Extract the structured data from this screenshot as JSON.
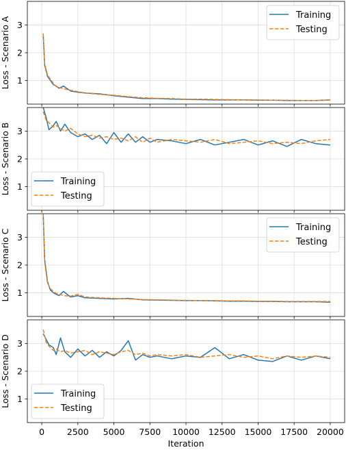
{
  "chart_data": [
    {
      "type": "line",
      "ylabel": "Loss - Scenario A",
      "xlabel": "",
      "xlim": [
        -1000,
        21000
      ],
      "ylim": [
        0.15,
        3.85
      ],
      "xticks": [
        0,
        2500,
        5000,
        7500,
        10000,
        12500,
        15000,
        17500,
        20000
      ],
      "yticks": [
        1,
        2,
        3
      ],
      "grid": true,
      "legend_position": "upper right",
      "series": [
        {
          "name": "Training",
          "color": "#1f77b4",
          "dash": "solid",
          "x": [
            100,
            200,
            400,
            600,
            800,
            1000,
            1200,
            1500,
            2000,
            2500,
            3000,
            4000,
            5000,
            6000,
            7000,
            8000,
            9000,
            10000,
            11000,
            12000,
            13000,
            14000,
            15000,
            16000,
            17000,
            18000,
            19000,
            20000
          ],
          "y": [
            2.65,
            1.55,
            1.15,
            1.0,
            0.85,
            0.8,
            0.72,
            0.8,
            0.62,
            0.58,
            0.55,
            0.52,
            0.45,
            0.4,
            0.35,
            0.35,
            0.33,
            0.32,
            0.31,
            0.3,
            0.3,
            0.3,
            0.29,
            0.29,
            0.28,
            0.28,
            0.28,
            0.3
          ]
        },
        {
          "name": "Testing",
          "color": "#ff7f0e",
          "dash": "dashed",
          "x": [
            100,
            200,
            400,
            600,
            800,
            1000,
            1200,
            1500,
            2000,
            2500,
            3000,
            4000,
            5000,
            6000,
            7000,
            8000,
            9000,
            10000,
            11000,
            12000,
            13000,
            14000,
            15000,
            16000,
            17000,
            18000,
            19000,
            20000
          ],
          "y": [
            2.7,
            1.6,
            1.2,
            1.05,
            0.9,
            0.78,
            0.75,
            0.7,
            0.65,
            0.6,
            0.55,
            0.5,
            0.47,
            0.42,
            0.38,
            0.36,
            0.35,
            0.33,
            0.33,
            0.32,
            0.31,
            0.3,
            0.3,
            0.29,
            0.29,
            0.28,
            0.28,
            0.29
          ]
        }
      ]
    },
    {
      "type": "line",
      "ylabel": "Loss - Scenario B",
      "xlabel": "",
      "xlim": [
        -1000,
        21000
      ],
      "ylim": [
        0.15,
        3.85
      ],
      "xticks": [
        0,
        2500,
        5000,
        7500,
        10000,
        12500,
        15000,
        17500,
        20000
      ],
      "yticks": [
        1,
        2,
        3
      ],
      "grid": true,
      "legend_position": "lower left",
      "series": [
        {
          "name": "Training",
          "color": "#1f77b4",
          "dash": "solid",
          "x": [
            100,
            300,
            500,
            800,
            1000,
            1300,
            1600,
            2000,
            2500,
            3000,
            3500,
            4000,
            4500,
            5000,
            5500,
            6000,
            6500,
            7000,
            7500,
            8000,
            9000,
            10000,
            11000,
            12000,
            13000,
            14000,
            15000,
            16000,
            17000,
            18000,
            19000,
            20000
          ],
          "y": [
            3.85,
            3.5,
            3.05,
            3.2,
            3.35,
            3.0,
            3.25,
            2.95,
            2.8,
            2.9,
            2.7,
            2.85,
            2.55,
            2.95,
            2.6,
            2.9,
            2.6,
            2.8,
            2.6,
            2.7,
            2.65,
            2.55,
            2.7,
            2.5,
            2.6,
            2.7,
            2.5,
            2.65,
            2.45,
            2.7,
            2.55,
            2.5
          ]
        },
        {
          "name": "Testing",
          "color": "#ff7f0e",
          "dash": "dashed",
          "x": [
            100,
            300,
            500,
            800,
            1000,
            1300,
            1600,
            2000,
            2500,
            3000,
            3500,
            4000,
            4500,
            5000,
            5500,
            6000,
            6500,
            7000,
            7500,
            8000,
            9000,
            10000,
            11000,
            12000,
            13000,
            14000,
            15000,
            16000,
            17000,
            18000,
            19000,
            20000
          ],
          "y": [
            3.7,
            3.4,
            3.3,
            3.15,
            3.2,
            3.1,
            3.0,
            3.1,
            2.9,
            2.8,
            2.85,
            2.75,
            2.8,
            2.7,
            2.75,
            2.65,
            2.8,
            2.6,
            2.75,
            2.6,
            2.7,
            2.65,
            2.6,
            2.7,
            2.55,
            2.6,
            2.65,
            2.55,
            2.6,
            2.55,
            2.65,
            2.7
          ]
        }
      ]
    },
    {
      "type": "line",
      "ylabel": "Loss - Scenario C",
      "xlabel": "",
      "xlim": [
        -1000,
        21000
      ],
      "ylim": [
        0.15,
        3.85
      ],
      "xticks": [
        0,
        2500,
        5000,
        7500,
        10000,
        12500,
        15000,
        17500,
        20000
      ],
      "yticks": [
        1,
        2,
        3
      ],
      "grid": true,
      "legend_position": "upper right",
      "series": [
        {
          "name": "Training",
          "color": "#1f77b4",
          "dash": "solid",
          "x": [
            100,
            200,
            400,
            600,
            800,
            1000,
            1200,
            1500,
            2000,
            2500,
            3000,
            4000,
            5000,
            6000,
            7000,
            8000,
            9000,
            10000,
            11000,
            12000,
            13000,
            14000,
            15000,
            16000,
            17000,
            18000,
            19000,
            20000
          ],
          "y": [
            3.85,
            2.2,
            1.4,
            1.1,
            1.0,
            0.95,
            0.9,
            1.05,
            0.85,
            0.9,
            0.82,
            0.8,
            0.78,
            0.8,
            0.75,
            0.74,
            0.73,
            0.72,
            0.72,
            0.71,
            0.7,
            0.7,
            0.69,
            0.69,
            0.68,
            0.68,
            0.68,
            0.66
          ]
        },
        {
          "name": "Testing",
          "color": "#ff7f0e",
          "dash": "dashed",
          "x": [
            100,
            200,
            400,
            600,
            800,
            1000,
            1200,
            1500,
            2000,
            2500,
            3000,
            4000,
            5000,
            6000,
            7000,
            8000,
            9000,
            10000,
            11000,
            12000,
            13000,
            14000,
            15000,
            16000,
            17000,
            18000,
            19000,
            20000
          ],
          "y": [
            3.85,
            2.1,
            1.35,
            1.15,
            1.05,
            0.98,
            0.95,
            0.9,
            0.88,
            0.95,
            0.85,
            0.82,
            0.8,
            0.78,
            0.76,
            0.75,
            0.74,
            0.73,
            0.72,
            0.72,
            0.71,
            0.71,
            0.7,
            0.7,
            0.69,
            0.69,
            0.69,
            0.69
          ]
        }
      ]
    },
    {
      "type": "line",
      "ylabel": "Loss - Scenario D",
      "xlabel": "Iteration",
      "xlim": [
        -1000,
        21000
      ],
      "ylim": [
        0.15,
        3.85
      ],
      "xticks": [
        0,
        2500,
        5000,
        7500,
        10000,
        12500,
        15000,
        17500,
        20000
      ],
      "xticklabels": [
        "0",
        "2500",
        "5000",
        "7500",
        "10000",
        "12500",
        "15000",
        "17500",
        "20000"
      ],
      "yticks": [
        1,
        2,
        3
      ],
      "grid": true,
      "legend_position": "lower left",
      "series": [
        {
          "name": "Training",
          "color": "#1f77b4",
          "dash": "solid",
          "x": [
            100,
            300,
            500,
            800,
            1000,
            1300,
            1600,
            2000,
            2500,
            3000,
            3500,
            4000,
            4500,
            5000,
            5500,
            6000,
            6500,
            7000,
            7500,
            8000,
            9000,
            10000,
            11000,
            12000,
            13000,
            14000,
            15000,
            16000,
            17000,
            18000,
            19000,
            20000
          ],
          "y": [
            3.35,
            3.15,
            2.95,
            2.85,
            2.6,
            3.2,
            2.7,
            2.5,
            2.8,
            2.55,
            2.75,
            2.5,
            2.7,
            2.55,
            2.75,
            3.1,
            2.4,
            2.6,
            2.5,
            2.55,
            2.45,
            2.55,
            2.5,
            2.85,
            2.45,
            2.6,
            2.4,
            2.35,
            2.55,
            2.4,
            2.55,
            2.45
          ]
        },
        {
          "name": "Testing",
          "color": "#ff7f0e",
          "dash": "dashed",
          "x": [
            100,
            300,
            500,
            800,
            1000,
            1300,
            1600,
            2000,
            2500,
            3000,
            3500,
            4000,
            4500,
            5000,
            5500,
            6000,
            6500,
            7000,
            7500,
            8000,
            9000,
            10000,
            11000,
            12000,
            13000,
            14000,
            15000,
            16000,
            17000,
            18000,
            19000,
            20000
          ],
          "y": [
            3.5,
            3.05,
            2.9,
            2.75,
            2.8,
            2.7,
            2.75,
            2.65,
            2.7,
            2.75,
            2.6,
            2.7,
            2.65,
            2.6,
            2.7,
            2.75,
            2.6,
            2.65,
            2.55,
            2.6,
            2.55,
            2.6,
            2.5,
            2.55,
            2.6,
            2.5,
            2.55,
            2.45,
            2.55,
            2.5,
            2.55,
            2.5
          ]
        }
      ]
    }
  ]
}
